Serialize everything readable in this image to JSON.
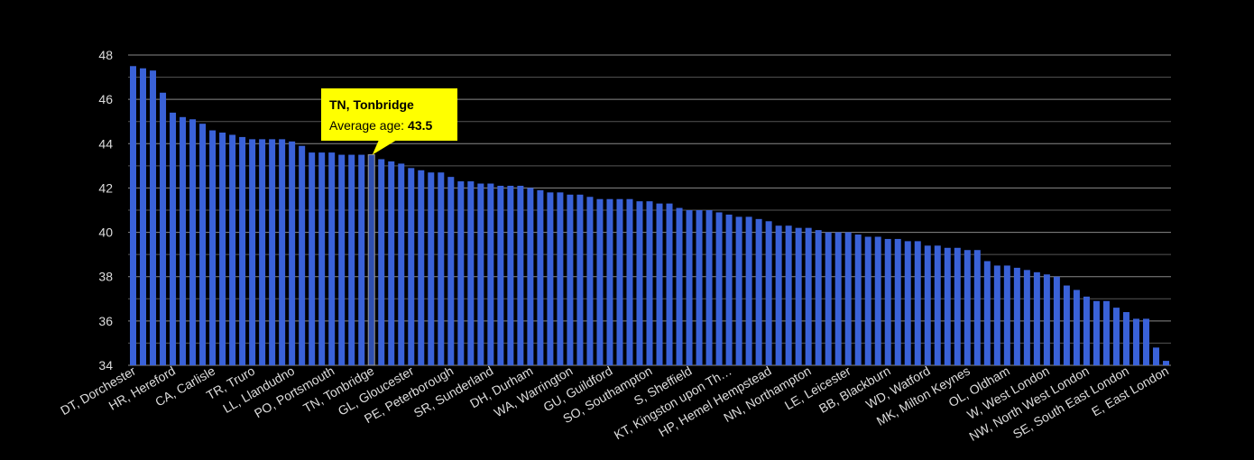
{
  "chart_data": {
    "type": "bar",
    "color": "#3a62d8",
    "highlight_color": "#2f4fb0",
    "background": "#000000",
    "categories": [
      "DT, Dorchester",
      null,
      null,
      null,
      "HR, Hereford",
      null,
      null,
      null,
      "CA, Carlisle",
      null,
      null,
      null,
      "TR, Truro",
      null,
      null,
      null,
      "LL, Llandudno",
      null,
      null,
      null,
      "PO, Portsmouth",
      null,
      null,
      null,
      "TN, Tonbridge",
      null,
      null,
      null,
      "GL, Gloucester",
      null,
      null,
      null,
      "PE, Peterborough",
      null,
      null,
      null,
      "SR, Sunderland",
      null,
      null,
      null,
      "DH, Durham",
      null,
      null,
      null,
      "WA, Warrington",
      null,
      null,
      null,
      "GU, Guildford",
      null,
      null,
      null,
      "SO, Southampton",
      null,
      null,
      null,
      "S, Sheffield",
      null,
      null,
      null,
      "KT, Kingston upon Th…",
      null,
      null,
      null,
      "HP, Hemel Hempstead",
      null,
      null,
      null,
      "NN, Northampton",
      null,
      null,
      null,
      "LE, Leicester",
      null,
      null,
      null,
      "BB, Blackburn",
      null,
      null,
      null,
      "WD, Watford",
      null,
      null,
      null,
      "MK, Milton Keynes",
      null,
      null,
      null,
      "OL, Oldham",
      null,
      null,
      null,
      "W, West London",
      null,
      null,
      null,
      "NW, North West London",
      null,
      null,
      null,
      "SE, South East London",
      null,
      null,
      null,
      "E, East London"
    ],
    "values": [
      47.5,
      47.4,
      47.3,
      46.3,
      45.4,
      45.2,
      45.1,
      44.9,
      44.6,
      44.5,
      44.4,
      44.3,
      44.2,
      44.2,
      44.2,
      44.2,
      44.1,
      43.9,
      43.6,
      43.6,
      43.6,
      43.5,
      43.5,
      43.5,
      43.5,
      43.3,
      43.2,
      43.1,
      42.9,
      42.8,
      42.7,
      42.7,
      42.5,
      42.3,
      42.3,
      42.2,
      42.2,
      42.1,
      42.1,
      42.1,
      42.0,
      41.9,
      41.8,
      41.8,
      41.7,
      41.7,
      41.6,
      41.5,
      41.5,
      41.5,
      41.5,
      41.4,
      41.4,
      41.3,
      41.3,
      41.1,
      41.0,
      41.0,
      41.0,
      40.9,
      40.8,
      40.7,
      40.7,
      40.6,
      40.5,
      40.3,
      40.3,
      40.2,
      40.2,
      40.1,
      40.0,
      40.0,
      40.0,
      39.9,
      39.8,
      39.8,
      39.7,
      39.7,
      39.6,
      39.6,
      39.4,
      39.4,
      39.3,
      39.3,
      39.2,
      39.2,
      38.7,
      38.5,
      38.5,
      38.4,
      38.3,
      38.2,
      38.1,
      38.0,
      37.6,
      37.4,
      37.1,
      36.9,
      36.9,
      36.6,
      36.4,
      36.1,
      36.1,
      34.8,
      34.2
    ],
    "ylim": [
      34,
      48
    ],
    "yticks": [
      34,
      36,
      38,
      40,
      42,
      44,
      46,
      48
    ],
    "minor_yticks": [
      35,
      37,
      39,
      41,
      43,
      45,
      47
    ],
    "grid": true,
    "tooltip": {
      "title": "TN, Tonbridge",
      "label": "Average age:"
    }
  }
}
